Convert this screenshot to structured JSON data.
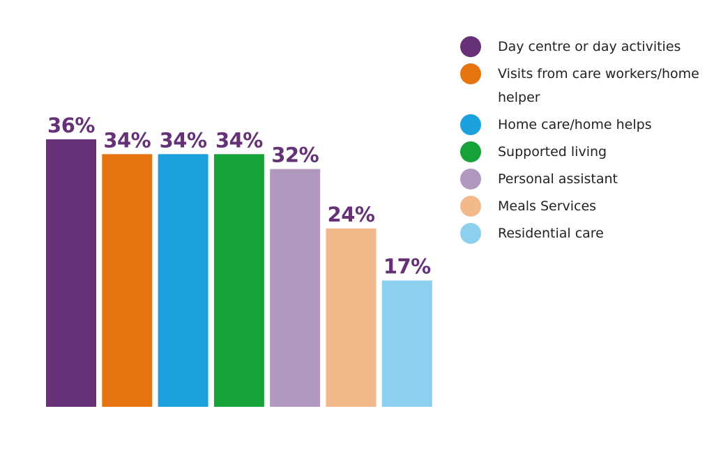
{
  "chart_data": {
    "type": "bar",
    "categories": [
      "Day centre or day activities",
      "Visits from care workers/home helper",
      "Home care/home helps",
      "Supported living",
      "Personal assistant",
      "Meals Services",
      "Residential care"
    ],
    "values": [
      36,
      34,
      34,
      34,
      32,
      24,
      17
    ],
    "value_labels": [
      "36%",
      "34%",
      "34%",
      "34%",
      "32%",
      "24%",
      "17%"
    ],
    "colors": [
      "#663176",
      "#E5730E",
      "#1BA0DC",
      "#17A139",
      "#B198BF",
      "#F2B98A",
      "#8DD0EE"
    ],
    "label_color": "#663176",
    "ylim": [
      0,
      36
    ],
    "grid": false,
    "legend_position": "right"
  },
  "legend": {
    "items": [
      {
        "label": "Day centre or day activities",
        "color": "#663176",
        "icon": "circle"
      },
      {
        "label": "Visits from care workers/home helper",
        "color": "#E5730E",
        "icon": "circle"
      },
      {
        "label": "Home care/home helps",
        "color": "#1BA0DC",
        "icon": "circle"
      },
      {
        "label": "Supported living",
        "color": "#17A139",
        "icon": "circle"
      },
      {
        "label": "Personal assistant",
        "color": "#B198BF",
        "icon": "circle"
      },
      {
        "label": "Meals Services",
        "color": "#F2B98A",
        "icon": "circle"
      },
      {
        "label": "Residential care",
        "color": "#8DD0EE",
        "icon": "circle"
      }
    ]
  }
}
